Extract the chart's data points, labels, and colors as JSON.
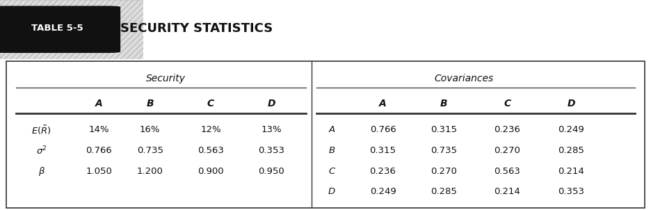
{
  "title_label": "TABLE 5-5",
  "title_text": "SECURITY STATISTICS",
  "sec_header": "Security",
  "cov_header": "Covariances",
  "sec_col_headers": [
    "A",
    "B",
    "C",
    "D"
  ],
  "cov_col_headers": [
    "A",
    "B",
    "C",
    "D"
  ],
  "sec_data": [
    [
      "14%",
      "16%",
      "12%",
      "13%"
    ],
    [
      "0.766",
      "0.735",
      "0.563",
      "0.353"
    ],
    [
      "1.050",
      "1.200",
      "0.900",
      "0.950"
    ]
  ],
  "cov_row_labels": [
    "A",
    "B",
    "C",
    "D"
  ],
  "cov_data": [
    [
      "0.766",
      "0.315",
      "0.236",
      "0.249"
    ],
    [
      "0.315",
      "0.735",
      "0.270",
      "0.285"
    ],
    [
      "0.236",
      "0.270",
      "0.563",
      "0.214"
    ],
    [
      "0.249",
      "0.285",
      "0.214",
      "0.353"
    ]
  ],
  "page_bg": "#ffffff",
  "hatch_bg": "#e8e8e8",
  "table_bg": "#ffffff",
  "title_box_bg": "#111111",
  "title_color": "#ffffff",
  "text_color": "#111111",
  "border_color": "#333333"
}
